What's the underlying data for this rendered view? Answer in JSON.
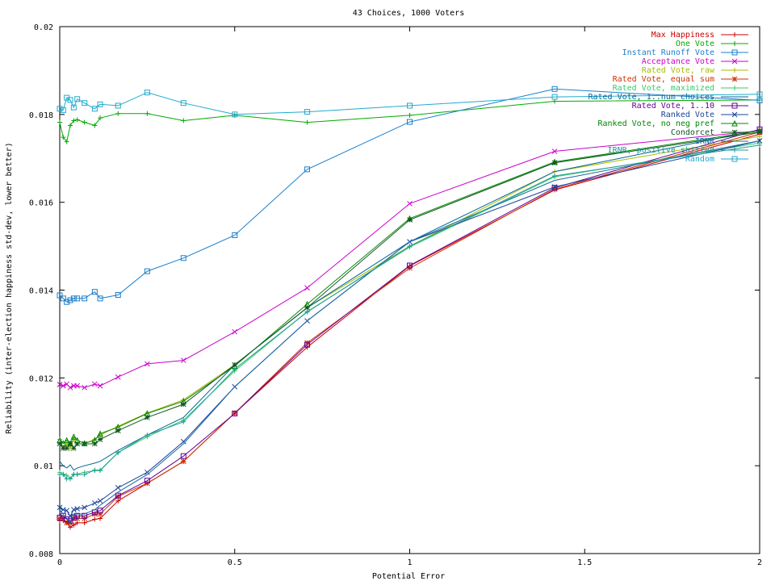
{
  "chart_data": {
    "type": "line",
    "title": "43 Choices, 1000 Voters",
    "xlabel": "Potential Error",
    "ylabel": "Reliability (inter-election happiness std-dev, lower better)",
    "xlim": [
      0,
      2
    ],
    "ylim": [
      0.008,
      0.02
    ],
    "x_ticks": [
      {
        "value": 0,
        "label": "0"
      },
      {
        "value": 0.5,
        "label": "0.5"
      },
      {
        "value": 1,
        "label": "1"
      },
      {
        "value": 1.5,
        "label": "1.5"
      },
      {
        "value": 2,
        "label": "2"
      }
    ],
    "y_ticks": [
      {
        "value": 0.008,
        "label": "0.008"
      },
      {
        "value": 0.01,
        "label": "0.01"
      },
      {
        "value": 0.012,
        "label": "0.012"
      },
      {
        "value": 0.014,
        "label": "0.014"
      },
      {
        "value": 0.016,
        "label": "0.016"
      },
      {
        "value": 0.018,
        "label": "0.018"
      },
      {
        "value": 0.02,
        "label": "0.02"
      }
    ],
    "grid": false,
    "legend_position": "top-right",
    "x": [
      0,
      0.01,
      0.02,
      0.03,
      0.04,
      0.05,
      0.0707,
      0.1,
      0.1155,
      0.1667,
      0.25,
      0.3536,
      0.5,
      0.7071,
      1,
      1.4142,
      2
    ],
    "series": [
      {
        "name": "Max Happiness",
        "color": "#cc0000",
        "marker": "plus",
        "values": [
          0.00875,
          0.00875,
          0.0087,
          0.0086,
          0.00865,
          0.0087,
          0.0087,
          0.00878,
          0.0088,
          0.0092,
          0.0096,
          0.0101,
          0.0112,
          0.0127,
          0.01455,
          0.01628,
          0.01755
        ]
      },
      {
        "name": "One Vote",
        "color": "#00aa00",
        "marker": "plus",
        "values": [
          0.01782,
          0.01748,
          0.01738,
          0.01775,
          0.01786,
          0.01788,
          0.01782,
          0.01775,
          0.01792,
          0.01802,
          0.01802,
          0.01786,
          0.01798,
          0.01782,
          0.01798,
          0.0183,
          0.01833
        ]
      },
      {
        "name": "Instant Runoff Vote",
        "color": "#1a7fcc",
        "marker": "square",
        "values": [
          0.01388,
          0.01381,
          0.01373,
          0.01377,
          0.01381,
          0.01381,
          0.01381,
          0.01396,
          0.01381,
          0.01389,
          0.01443,
          0.01473,
          0.01525,
          0.01675,
          0.01783,
          0.01858,
          0.01832
        ]
      },
      {
        "name": "Acceptance Vote",
        "color": "#cc00cc",
        "marker": "x",
        "values": [
          0.01185,
          0.01182,
          0.01186,
          0.01178,
          0.01182,
          0.01182,
          0.01178,
          0.01186,
          0.01182,
          0.01202,
          0.01232,
          0.0124,
          0.01305,
          0.01405,
          0.01597,
          0.01716,
          0.01763
        ]
      },
      {
        "name": "Rated Vote, raw",
        "color": "#aabb00",
        "marker": "plus",
        "values": [
          0.0106,
          0.0104,
          0.0105,
          0.0104,
          0.0106,
          0.0105,
          0.0105,
          0.0106,
          0.0107,
          0.0109,
          0.0112,
          0.0115,
          0.0123,
          0.0136,
          0.015,
          0.0167,
          0.0175
        ]
      },
      {
        "name": "Rated Vote, equal sum",
        "color": "#cc3300",
        "marker": "star",
        "values": [
          0.0088,
          0.0088,
          0.0087,
          0.0087,
          0.0088,
          0.0088,
          0.0088,
          0.0089,
          0.0089,
          0.0093,
          0.0096,
          0.0101,
          0.0112,
          0.0128,
          0.0145,
          0.0163,
          0.0176
        ]
      },
      {
        "name": "Rated Vote, maximized",
        "color": "#33cc66",
        "marker": "plus",
        "values": [
          0.00985,
          0.00981,
          0.00978,
          0.00971,
          0.00981,
          0.00981,
          0.00985,
          0.00989,
          0.00989,
          0.0103,
          0.01066,
          0.01104,
          0.01216,
          0.01351,
          0.01498,
          0.01658,
          0.01735
        ]
      },
      {
        "name": "Rated Vote, 1..num choices",
        "color": "#006699",
        "marker": "none",
        "values": [
          0.0101,
          0.01,
          0.00995,
          0.01002,
          0.0099,
          0.00995,
          0.01,
          0.01006,
          0.0101,
          0.01035,
          0.0107,
          0.0111,
          0.0123,
          0.0136,
          0.0151,
          0.0167,
          0.01765
        ]
      },
      {
        "name": "Rated Vote, 1..10",
        "color": "#660099",
        "marker": "square",
        "values": [
          0.00882,
          0.00886,
          0.00878,
          0.00874,
          0.00882,
          0.00886,
          0.00886,
          0.00894,
          0.00898,
          0.00932,
          0.00966,
          0.01022,
          0.01119,
          0.01276,
          0.01456,
          0.01633,
          0.01766
        ]
      },
      {
        "name": "Ranked Vote",
        "color": "#1a4499",
        "marker": "x",
        "values": [
          0.00905,
          0.009,
          0.00898,
          0.00885,
          0.009,
          0.00902,
          0.00905,
          0.00915,
          0.0092,
          0.0095,
          0.00985,
          0.01055,
          0.0118,
          0.0133,
          0.0151,
          0.01635,
          0.0174
        ]
      },
      {
        "name": "Ranked Vote, no neg pref",
        "color": "#008800",
        "marker": "triangle",
        "values": [
          0.01058,
          0.01051,
          0.01058,
          0.01051,
          0.01066,
          0.01058,
          0.01051,
          0.01058,
          0.01073,
          0.01088,
          0.01119,
          0.01147,
          0.01227,
          0.01368,
          0.01563,
          0.01692,
          0.01763
        ]
      },
      {
        "name": "Condorcet",
        "color": "#115522",
        "marker": "star",
        "values": [
          0.0105,
          0.0104,
          0.0104,
          0.0105,
          0.0104,
          0.0105,
          0.0105,
          0.0105,
          0.0106,
          0.0108,
          0.0111,
          0.0114,
          0.0123,
          0.0136,
          0.0156,
          0.0169,
          0.0176
        ]
      },
      {
        "name": "IRNR",
        "color": "#1a6aa6",
        "marker": "none",
        "values": [
          0.009,
          0.0089,
          0.0088,
          0.0087,
          0.0089,
          0.0089,
          0.0089,
          0.009,
          0.0091,
          0.0094,
          0.0098,
          0.0105,
          0.0118,
          0.0133,
          0.0151,
          0.0165,
          0.0174
        ]
      },
      {
        "name": "IRNR, positive shifted",
        "color": "#229999",
        "marker": "plus",
        "values": [
          0.0098,
          0.0098,
          0.0097,
          0.0097,
          0.0098,
          0.0098,
          0.0098,
          0.0099,
          0.0099,
          0.0103,
          0.0107,
          0.011,
          0.0122,
          0.0135,
          0.015,
          0.0166,
          0.0173
        ]
      },
      {
        "name": "Random",
        "color": "#22aacc",
        "marker": "square",
        "values": [
          0.01813,
          0.0181,
          0.01838,
          0.01833,
          0.01816,
          0.01835,
          0.01826,
          0.01813,
          0.01823,
          0.0182,
          0.0185,
          0.01826,
          0.018,
          0.01806,
          0.0182,
          0.0184,
          0.01846
        ]
      }
    ]
  }
}
